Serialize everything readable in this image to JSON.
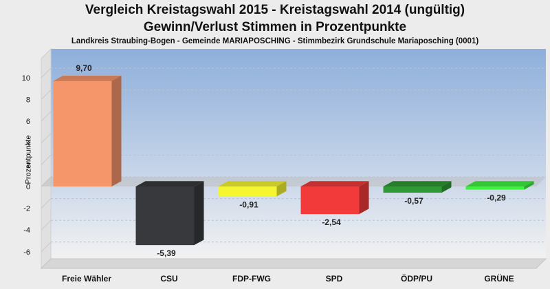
{
  "chart_data": {
    "type": "bar",
    "title": "Vergleich Kreistagswahl 2015 - Kreistagswahl 2014 (ungültig)",
    "subtitle": "Gewinn/Verlust Stimmen in Prozentpunkte",
    "note": "Landkreis Straubing-Bogen - Gemeinde MARIAPOSCHING - Stimmbezirk Grundschule Mariaposching (0001)",
    "ylabel": "Prozentpunkte",
    "xlabel": "",
    "ylim": [
      -7,
      11
    ],
    "yticks": [
      -6,
      -4,
      -2,
      0,
      2,
      4,
      6,
      8,
      10
    ],
    "categories": [
      "Freie Wähler",
      "CSU",
      "FDP-FWG",
      "SPD",
      "ÖDP/PU",
      "GRÜNE"
    ],
    "values": [
      9.7,
      -5.39,
      -0.91,
      -2.54,
      -0.57,
      -0.29
    ],
    "value_labels": [
      "9,70",
      "-5,39",
      "-0,91",
      "-2,54",
      "-0,57",
      "-0,29"
    ],
    "colors": [
      "#f4956a",
      "#38393c",
      "#f5f531",
      "#f23a3a",
      "#2f9a33",
      "#3ff23f"
    ],
    "grid": true,
    "legend": "none"
  }
}
